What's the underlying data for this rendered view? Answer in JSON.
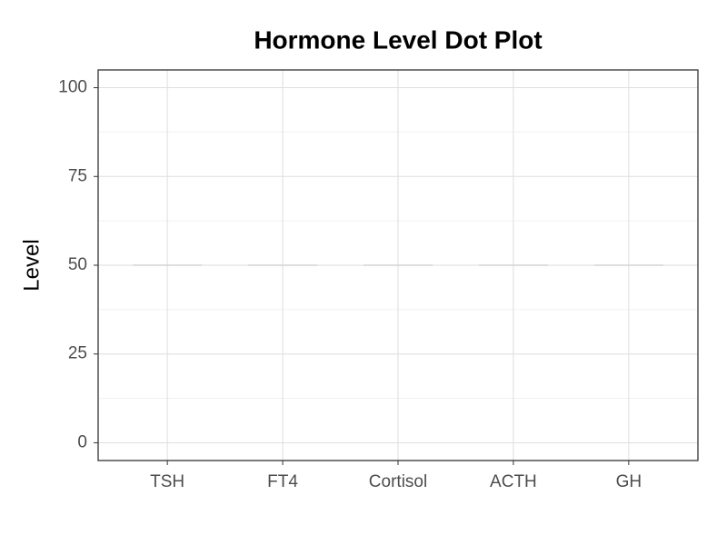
{
  "chart_data": {
    "type": "dot",
    "title": "Hormone Level Dot Plot",
    "y_label": "Level",
    "categories": [
      "TSH",
      "FT4",
      "Cortisol",
      "ACTH",
      "GH"
    ],
    "values": [
      50,
      50,
      50,
      50,
      50
    ],
    "color": "#d3d3d3",
    "ylim": [
      -5,
      105
    ],
    "yticks": [
      0,
      25,
      50,
      75,
      100
    ],
    "grid": true
  }
}
